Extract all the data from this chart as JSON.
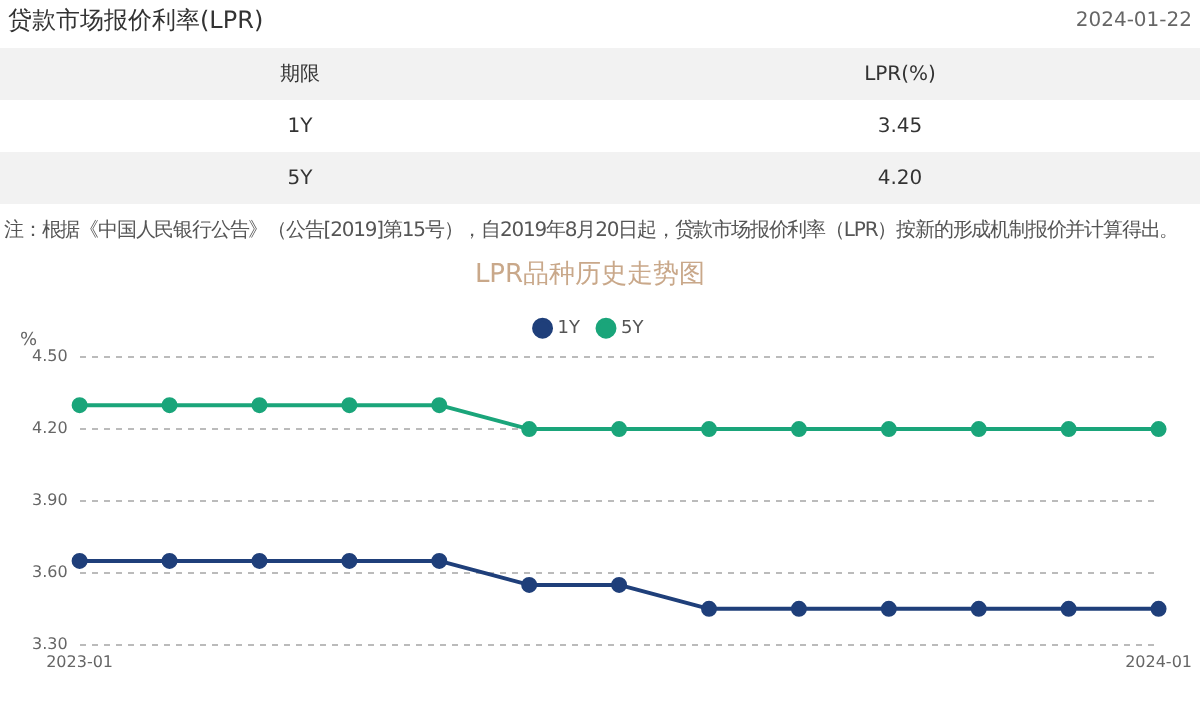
{
  "chart_data": {
    "type": "line",
    "title": "LPR品种历史走势图",
    "ylabel": "%",
    "categories": [
      "2023-01",
      null,
      null,
      null,
      null,
      null,
      null,
      null,
      null,
      null,
      null,
      null,
      "2024-01"
    ],
    "series": [
      {
        "name": "1Y",
        "color": "#1f3f7a",
        "values": [
          3.65,
          3.65,
          3.65,
          3.65,
          3.65,
          3.55,
          3.55,
          3.45,
          3.45,
          3.45,
          3.45,
          3.45,
          3.45
        ]
      },
      {
        "name": "5Y",
        "color": "#1aa57a",
        "values": [
          4.3,
          4.3,
          4.3,
          4.3,
          4.3,
          4.2,
          4.2,
          4.2,
          4.2,
          4.2,
          4.2,
          4.2,
          4.2
        ]
      }
    ],
    "ylim": [
      3.3,
      4.5
    ],
    "yticks": [
      {
        "value": 3.3,
        "label": "3.30"
      },
      {
        "value": 3.6,
        "label": "3.60"
      },
      {
        "value": 3.9,
        "label": "3.90"
      },
      {
        "value": 4.2,
        "label": "4.20"
      },
      {
        "value": 4.5,
        "label": "4.50"
      }
    ],
    "grid": "y",
    "legend": "top",
    "marker": "circle",
    "line_style": "solid",
    "annotations": [
      "贷款市场报价利率(LPR)",
      "2024-01-22",
      "期限",
      "LPR(%)",
      "1Y",
      "3.45",
      "5Y",
      "4.20",
      "注：根据《中国人民银行公告》（公告[2019]第15号），自2019年8月20日起，贷款市场报价利率（LPR）按新的形成机制报价并计算得出。"
    ]
  }
}
